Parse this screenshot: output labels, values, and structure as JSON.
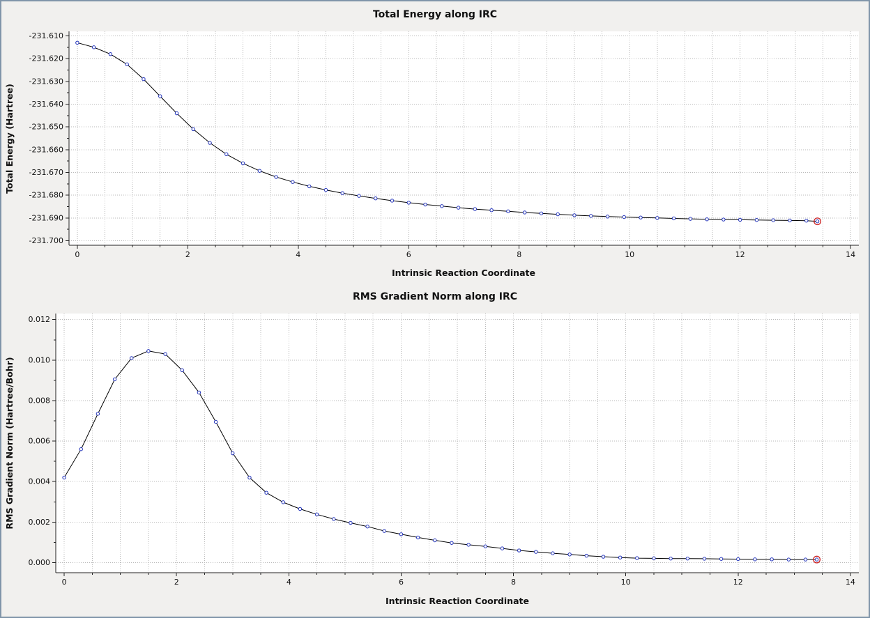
{
  "frame": {
    "background": "#f1f0ee",
    "border_color": "#8095a9",
    "plot_background": "#ffffff",
    "grid_color": "#b9b9b9",
    "axis_color": "#222222"
  },
  "chart_data": [
    {
      "type": "line",
      "title": "Total Energy along IRC",
      "xlabel": "Intrinsic Reaction Coordinate",
      "ylabel": "Total Energy (Hartree)",
      "xlim": [
        -0.15,
        14.15
      ],
      "ylim": [
        -231.702,
        -231.608
      ],
      "x_ticks": [
        0,
        2,
        4,
        6,
        8,
        10,
        12,
        14
      ],
      "x_tick_labels": [
        "0",
        "2",
        "4",
        "6",
        "8",
        "10",
        "12",
        "14"
      ],
      "y_ticks": [
        -231.61,
        -231.62,
        -231.63,
        -231.64,
        -231.65,
        -231.66,
        -231.67,
        -231.68,
        -231.69,
        -231.7
      ],
      "y_tick_labels": [
        "-231.610",
        "-231.620",
        "-231.630",
        "-231.640",
        "-231.650",
        "-231.660",
        "-231.670",
        "-231.680",
        "-231.690",
        "-231.700"
      ],
      "grid": true,
      "grid_x_step": 0.5,
      "plot_bg": "#ffffff",
      "grid_color": "#b9b9b9",
      "line_color": "#000000",
      "marker": "circle-open",
      "marker_color": "#2233bb",
      "last_point_color": "#cc2222",
      "x": [
        0.0,
        0.3,
        0.6,
        0.9,
        1.2,
        1.5,
        1.8,
        2.1,
        2.4,
        2.7,
        3.0,
        3.3,
        3.6,
        3.9,
        4.2,
        4.5,
        4.8,
        5.1,
        5.4,
        5.7,
        6.0,
        6.3,
        6.6,
        6.9,
        7.2,
        7.5,
        7.8,
        8.1,
        8.4,
        8.7,
        9.0,
        9.3,
        9.6,
        9.9,
        10.2,
        10.5,
        10.8,
        11.1,
        11.4,
        11.7,
        12.0,
        12.3,
        12.6,
        12.9,
        13.2,
        13.4
      ],
      "y": [
        -231.613,
        -231.615,
        -231.618,
        -231.6225,
        -231.629,
        -231.6365,
        -231.644,
        -231.651,
        -231.657,
        -231.662,
        -231.666,
        -231.6693,
        -231.672,
        -231.6742,
        -231.6761,
        -231.6777,
        -231.6791,
        -231.6803,
        -231.6814,
        -231.6824,
        -231.6833,
        -231.6841,
        -231.6848,
        -231.6855,
        -231.6861,
        -231.6866,
        -231.6871,
        -231.6876,
        -231.688,
        -231.6884,
        -231.6888,
        -231.6891,
        -231.6894,
        -231.6896,
        -231.6898,
        -231.69,
        -231.6902,
        -231.6904,
        -231.6906,
        -231.6907,
        -231.6908,
        -231.6909,
        -231.691,
        -231.6911,
        -231.6912,
        -231.6915
      ]
    },
    {
      "type": "line",
      "title": "RMS Gradient Norm along IRC",
      "xlabel": "Intrinsic Reaction Coordinate",
      "ylabel": "RMS Gradient Norm (Hartree/Bohr)",
      "xlim": [
        -0.15,
        14.15
      ],
      "ylim": [
        -0.0005,
        0.0123
      ],
      "x_ticks": [
        0,
        2,
        4,
        6,
        8,
        10,
        12,
        14
      ],
      "x_tick_labels": [
        "0",
        "2",
        "4",
        "6",
        "8",
        "10",
        "12",
        "14"
      ],
      "y_ticks": [
        0.012,
        0.01,
        0.008,
        0.006,
        0.004,
        0.002,
        0.0
      ],
      "y_tick_labels": [
        "0.012",
        "0.010",
        "0.008",
        "0.006",
        "0.004",
        "0.002",
        "0.000"
      ],
      "grid": true,
      "grid_x_step": 0.5,
      "plot_bg": "#ffffff",
      "grid_color": "#b9b9b9",
      "line_color": "#000000",
      "marker": "circle-open",
      "marker_color": "#2233bb",
      "last_point_color": "#cc2222",
      "x": [
        0.0,
        0.3,
        0.6,
        0.9,
        1.2,
        1.5,
        1.8,
        2.1,
        2.4,
        2.7,
        3.0,
        3.3,
        3.6,
        3.9,
        4.2,
        4.5,
        4.8,
        5.1,
        5.4,
        5.7,
        6.0,
        6.3,
        6.6,
        6.9,
        7.2,
        7.5,
        7.8,
        8.1,
        8.4,
        8.7,
        9.0,
        9.3,
        9.6,
        9.9,
        10.2,
        10.5,
        10.8,
        11.1,
        11.4,
        11.7,
        12.0,
        12.3,
        12.6,
        12.9,
        13.2,
        13.4
      ],
      "y": [
        0.0042,
        0.0056,
        0.00735,
        0.00905,
        0.0101,
        0.01045,
        0.0103,
        0.0095,
        0.0084,
        0.00695,
        0.0054,
        0.0042,
        0.00345,
        0.00298,
        0.00265,
        0.00238,
        0.00215,
        0.00196,
        0.00178,
        0.00156,
        0.0014,
        0.00124,
        0.0011,
        0.00097,
        0.00088,
        0.0008,
        0.0007,
        0.0006,
        0.00053,
        0.00046,
        0.0004,
        0.00034,
        0.00029,
        0.00025,
        0.00022,
        0.00021,
        0.0002,
        0.0002,
        0.00019,
        0.00018,
        0.00017,
        0.00016,
        0.00016,
        0.00015,
        0.00015,
        0.00015
      ]
    }
  ]
}
